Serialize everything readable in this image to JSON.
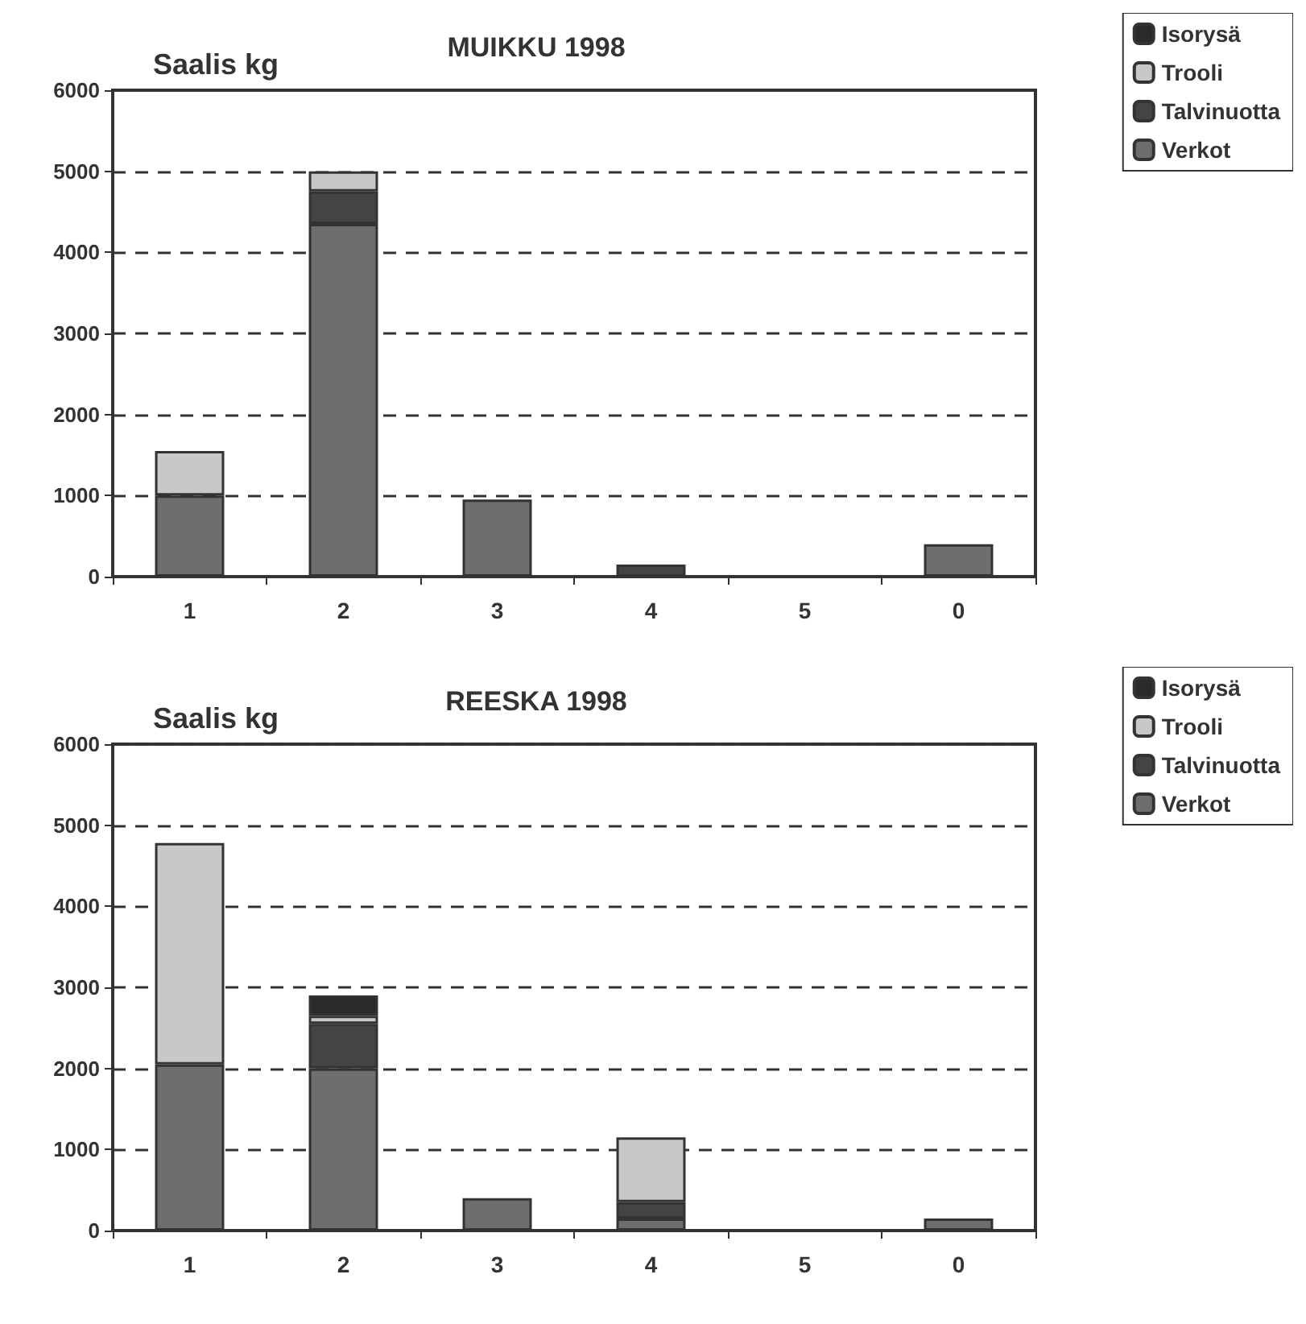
{
  "chart_data": [
    {
      "type": "bar",
      "title": "MUIKKU 1998",
      "ylabel": "Saalis kg",
      "categories": [
        "1",
        "2",
        "3",
        "4",
        "5",
        "0"
      ],
      "stacked": true,
      "ylim": [
        0,
        6000
      ],
      "yticks": [
        0,
        1000,
        2000,
        3000,
        4000,
        5000,
        6000
      ],
      "grid": "y",
      "legend": "top right",
      "series": [
        {
          "name": "Verkot",
          "color": "#6e6e6e",
          "values": [
            1000,
            4350,
            950,
            0,
            0,
            400
          ]
        },
        {
          "name": "Talvinuotta",
          "color": "#444444",
          "values": [
            0,
            400,
            0,
            150,
            0,
            0
          ]
        },
        {
          "name": "Trooli",
          "color": "#c8c8c8",
          "values": [
            550,
            250,
            0,
            0,
            0,
            0
          ]
        },
        {
          "name": "Isorysä",
          "color": "#2a2a2a",
          "values": [
            0,
            0,
            0,
            0,
            0,
            0
          ]
        }
      ]
    },
    {
      "type": "bar",
      "title": "REESKA 1998",
      "ylabel": "Saalis kg",
      "categories": [
        "1",
        "2",
        "3",
        "4",
        "5",
        "0"
      ],
      "stacked": true,
      "ylim": [
        0,
        6000
      ],
      "yticks": [
        0,
        1000,
        2000,
        3000,
        4000,
        5000,
        6000
      ],
      "grid": "y",
      "legend": "top right",
      "series": [
        {
          "name": "Verkot",
          "color": "#6e6e6e",
          "values": [
            2050,
            2000,
            400,
            150,
            0,
            150
          ]
        },
        {
          "name": "Talvinuotta",
          "color": "#444444",
          "values": [
            0,
            550,
            0,
            200,
            0,
            0
          ]
        },
        {
          "name": "Trooli",
          "color": "#c8c8c8",
          "values": [
            2730,
            100,
            0,
            800,
            0,
            0
          ]
        },
        {
          "name": "Isorysä",
          "color": "#2a2a2a",
          "values": [
            0,
            250,
            0,
            0,
            0,
            0
          ]
        }
      ]
    }
  ]
}
